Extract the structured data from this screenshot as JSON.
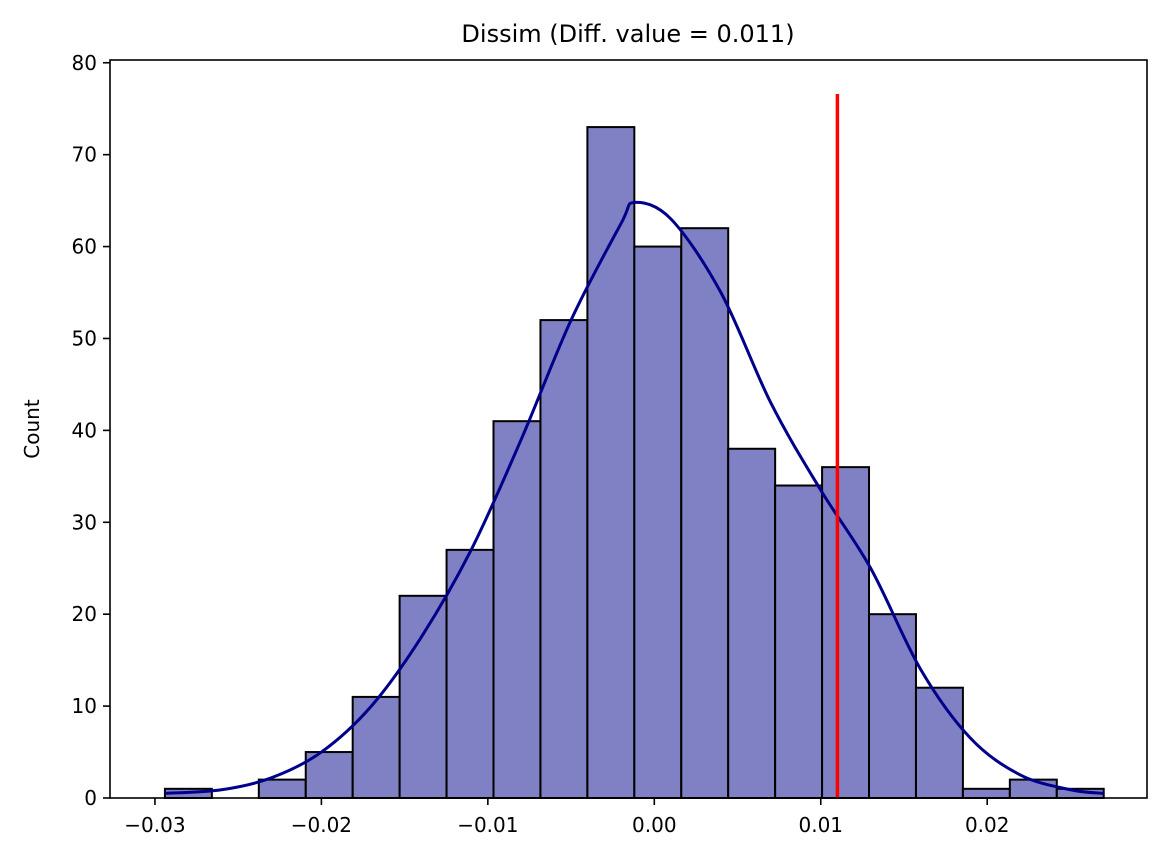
{
  "chart_data": {
    "type": "bar",
    "subtype": "histogram",
    "title": "Dissim (Diff. value = 0.011)",
    "xlabel": "",
    "ylabel": "Count",
    "xlim": [
      -0.0327,
      0.0296
    ],
    "ylim": [
      0,
      80.3
    ],
    "x_ticks": [
      -0.03,
      -0.02,
      -0.01,
      0.0,
      0.01,
      0.02
    ],
    "x_tick_labels": [
      "−0.03",
      "−0.02",
      "−0.01",
      "0.00",
      "0.01",
      "0.02"
    ],
    "y_ticks": [
      0,
      10,
      20,
      30,
      40,
      50,
      60,
      70,
      80
    ],
    "y_tick_labels": [
      "0",
      "10",
      "20",
      "30",
      "40",
      "50",
      "60",
      "70",
      "80"
    ],
    "bin_edges": [
      -0.0294,
      -0.02658,
      -0.02376,
      -0.02094,
      -0.01812,
      -0.0153,
      -0.01248,
      -0.00966,
      -0.00684,
      -0.00402,
      -0.0012,
      0.00162,
      0.00444,
      0.00726,
      0.01008,
      0.0129,
      0.01572,
      0.01854,
      0.02136,
      0.02418,
      0.027
    ],
    "counts": [
      1,
      0,
      2,
      5,
      11,
      22,
      27,
      41,
      52,
      73,
      60,
      62,
      38,
      34,
      36,
      20,
      12,
      1,
      2,
      1
    ],
    "kde_curve": {
      "x": [
        -0.0294,
        -0.026,
        -0.023,
        -0.02,
        -0.017,
        -0.014,
        -0.011,
        -0.008,
        -0.005,
        -0.002,
        -0.0012,
        0.001,
        0.004,
        0.007,
        0.01,
        0.013,
        0.016,
        0.019,
        0.022,
        0.025,
        0.027
      ],
      "y": [
        0.5,
        0.9,
        2.2,
        5.0,
        10.0,
        17.5,
        27.0,
        39.0,
        52.0,
        62.5,
        64.8,
        63.0,
        55.0,
        43.0,
        33.5,
        25.0,
        14.0,
        6.5,
        2.5,
        0.9,
        0.5
      ]
    },
    "reference_line": {
      "x": 0.011,
      "y_top": 76.6
    },
    "colors": {
      "bar_fill": "#8080c4",
      "bar_edge": "#000000",
      "kde_line": "#00008b",
      "reference_line": "#ff0000",
      "axes": "#000000",
      "background": "#ffffff"
    },
    "grid": false,
    "legend": "none"
  }
}
